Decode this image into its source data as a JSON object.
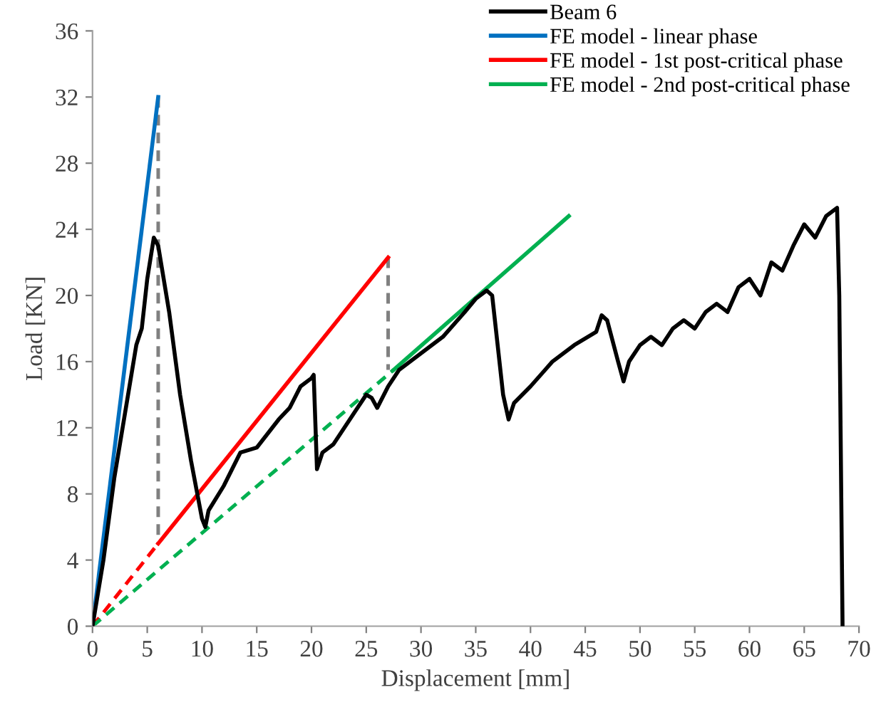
{
  "chart_data": {
    "type": "line",
    "xlabel": "Displacement [mm]",
    "ylabel": "Load [KN]",
    "xlim": [
      0,
      70
    ],
    "ylim": [
      0,
      36
    ],
    "xticks": [
      0,
      5,
      10,
      15,
      20,
      25,
      30,
      35,
      40,
      45,
      50,
      55,
      60,
      65,
      70
    ],
    "yticks": [
      0,
      4,
      8,
      12,
      16,
      20,
      24,
      28,
      32,
      36
    ],
    "grid": false,
    "legend": "top right",
    "marker": "none",
    "series": [
      {
        "name": "Beam 6",
        "color": "#000000",
        "line_style": "solid",
        "x": [
          0,
          1,
          2,
          3,
          4,
          4.5,
          5,
          5.6,
          6,
          7,
          8,
          9,
          10,
          10.3,
          10.6,
          12,
          13.5,
          15,
          17,
          18,
          19,
          20,
          20.2,
          20.5,
          21,
          22,
          23,
          24,
          25,
          25.5,
          26,
          27,
          28,
          30,
          32,
          34,
          35,
          36,
          36.5,
          37.5,
          38,
          38.5,
          40,
          42,
          44,
          46,
          46.5,
          47,
          48,
          48.5,
          49,
          50,
          51,
          52,
          53,
          54,
          55,
          56,
          57,
          58,
          59,
          60,
          61,
          62,
          63,
          64,
          65,
          66,
          67,
          68,
          68.2,
          68.5
        ],
        "values": [
          0,
          4,
          9,
          13,
          17,
          18,
          21,
          23.5,
          23,
          19,
          14,
          10,
          6.5,
          6,
          7,
          8.5,
          10.5,
          10.8,
          12.5,
          13.2,
          14.5,
          15,
          15.2,
          9.5,
          10.5,
          11,
          12,
          13,
          14,
          13.8,
          13.2,
          14.5,
          15.5,
          16.5,
          17.5,
          19,
          19.8,
          20.3,
          20,
          14,
          12.5,
          13.5,
          14.5,
          16,
          17,
          17.8,
          18.8,
          18.5,
          16,
          14.8,
          16,
          17,
          17.5,
          17,
          18,
          18.5,
          18,
          19,
          19.5,
          19,
          20.5,
          21,
          20,
          22,
          21.5,
          23,
          24.3,
          23.5,
          24.8,
          25.3,
          20,
          0
        ]
      },
      {
        "name": "FE model - linear phase",
        "color": "#0070c0",
        "line_style": "solid",
        "x": [
          0,
          6
        ],
        "values": [
          0,
          32
        ]
      },
      {
        "name": "FE model - 1st post-critical phase",
        "color": "#ff0000",
        "line_style": "solid",
        "x": [
          6,
          27
        ],
        "values": [
          5,
          22.3
        ]
      },
      {
        "name": "FE model - 2nd post-critical phase",
        "color": "#00b050",
        "line_style": "solid",
        "x": [
          27.5,
          43.5
        ],
        "values": [
          15.5,
          24.8
        ]
      },
      {
        "color": "#ff0000",
        "line_style": "dashed",
        "x": [
          0,
          6
        ],
        "values": [
          0,
          5
        ]
      },
      {
        "color": "#00b050",
        "line_style": "dashed",
        "x": [
          0,
          27.5
        ],
        "values": [
          0,
          15.5
        ]
      },
      {
        "color": "#808080",
        "line_style": "dashed",
        "x": [
          6,
          6
        ],
        "values": [
          32,
          5
        ]
      },
      {
        "color": "#808080",
        "line_style": "dashed",
        "x": [
          27,
          27
        ],
        "values": [
          22.3,
          15.5
        ]
      }
    ]
  }
}
